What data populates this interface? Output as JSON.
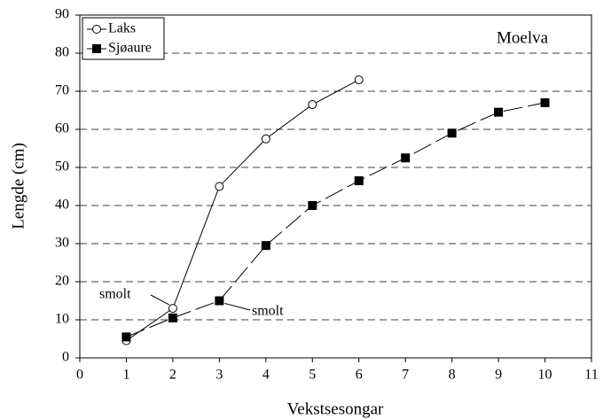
{
  "chart_data": {
    "type": "line",
    "x_label": "Vekstsesongar",
    "y_label": "Lengde (cm)",
    "annotations": [
      {
        "text": "Moelva"
      },
      {
        "text": "smolt"
      },
      {
        "text": "smolt"
      }
    ],
    "series": [
      {
        "name": "Laks",
        "color": "#000000",
        "marker": "open-circle",
        "line": "solid",
        "x": [
          1,
          2,
          3,
          4,
          5,
          6
        ],
        "values": [
          4.5,
          13,
          45,
          57.5,
          66.5,
          73
        ]
      },
      {
        "name": "Sjøaure",
        "color": "#000000",
        "marker": "filled-square",
        "line": "dashed",
        "x": [
          1,
          2,
          3,
          4,
          5,
          6,
          7,
          8,
          9,
          10
        ],
        "values": [
          5.5,
          10.5,
          15,
          29.5,
          40,
          46.5,
          52.5,
          59,
          64.5,
          67
        ]
      }
    ],
    "xlim": [
      0,
      11
    ],
    "xticks": [
      0,
      1,
      2,
      3,
      4,
      5,
      6,
      7,
      8,
      9,
      10,
      11
    ],
    "ylim": [
      0,
      90
    ],
    "yticks": [
      0,
      10,
      20,
      30,
      40,
      50,
      60,
      70,
      80,
      90
    ],
    "grid": true,
    "legend": "upper left"
  }
}
